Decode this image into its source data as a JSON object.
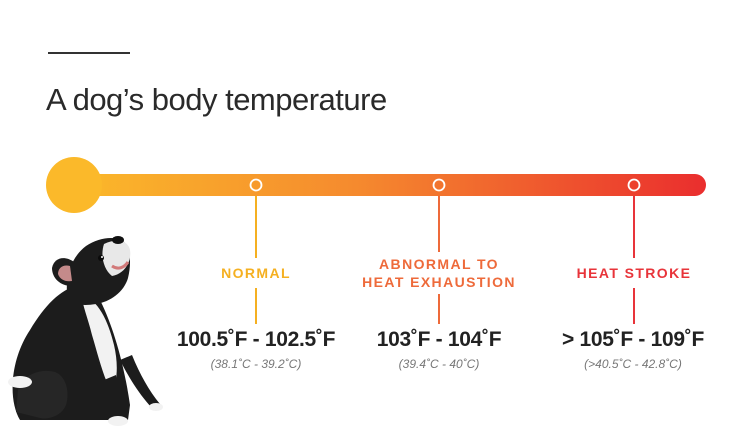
{
  "header": {
    "title": "A dog’s body temperature"
  },
  "colors": {
    "normal": "#F5B021",
    "abnormal": "#EE6A3A",
    "heat_stroke": "#E8343A",
    "bar_start": "#FBB92A",
    "bar_end": "#EA2E2E",
    "text_dark": "#222222",
    "text_muted": "#777777"
  },
  "ranges": [
    {
      "label_line1": "NORMAL",
      "label_line2": "",
      "fahrenheit": "100.5˚F - 102.5˚F",
      "celsius": "(38.1˚C - 39.2˚C)"
    },
    {
      "label_line1": "ABNORMAL TO",
      "label_line2": "HEAT EXHAUSTION",
      "fahrenheit": "103˚F - 104˚F",
      "celsius": "(39.4˚C - 40˚C)"
    },
    {
      "label_line1": "HEAT STROKE",
      "label_line2": "",
      "fahrenheit": "> 105˚F - 109˚F",
      "celsius": "(>40.5˚C - 42.8˚C)"
    }
  ],
  "icons": {
    "start_circle": "thermometer-bulb-icon",
    "marker": "ring-marker-icon",
    "image": "dog-photo"
  }
}
